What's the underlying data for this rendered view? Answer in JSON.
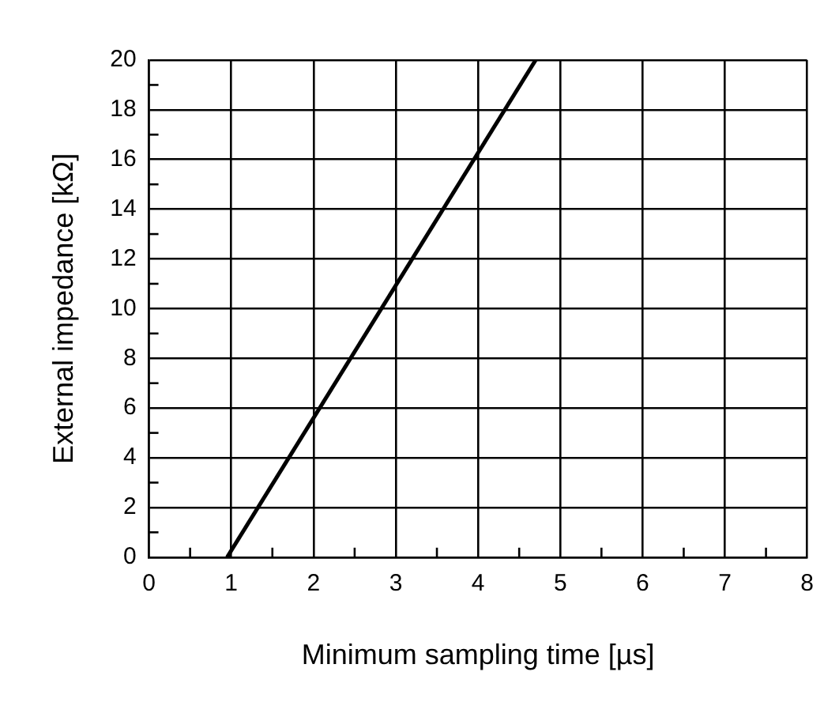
{
  "chart_data": {
    "type": "line",
    "xlabel": "Minimum sampling time [µs]",
    "ylabel": "External impedance [kΩ]",
    "x": [
      0.95,
      4.7
    ],
    "series": [
      {
        "color": "#000000",
        "values": [
          0,
          20
        ]
      }
    ],
    "xlim": [
      0,
      8
    ],
    "ylim": [
      0,
      20
    ],
    "xticks": [
      0,
      {
        "value": 0.5,
        "label": null
      },
      1,
      {
        "value": 1.5,
        "label": null
      },
      2,
      {
        "value": 2.5,
        "label": null
      },
      3,
      {
        "value": 3.5,
        "label": null
      },
      4,
      {
        "value": 4.5,
        "label": null
      },
      5,
      {
        "value": 5.5,
        "label": null
      },
      6,
      {
        "value": 6.5,
        "label": null
      },
      7,
      {
        "value": 7.5,
        "label": null
      },
      8
    ],
    "yticks": [
      0,
      {
        "value": 1,
        "label": null
      },
      2,
      {
        "value": 3,
        "label": null
      },
      4,
      {
        "value": 5,
        "label": null
      },
      6,
      {
        "value": 7,
        "label": null
      },
      8,
      {
        "value": 9,
        "label": null
      },
      10,
      {
        "value": 11,
        "label": null
      },
      12,
      {
        "value": 13,
        "label": null
      },
      14,
      {
        "value": 15,
        "label": null
      },
      16,
      {
        "value": 17,
        "label": null
      },
      18,
      {
        "value": 19,
        "label": null
      },
      20
    ],
    "grid": true,
    "legend": false,
    "marker": "none",
    "line_style": "solid"
  }
}
